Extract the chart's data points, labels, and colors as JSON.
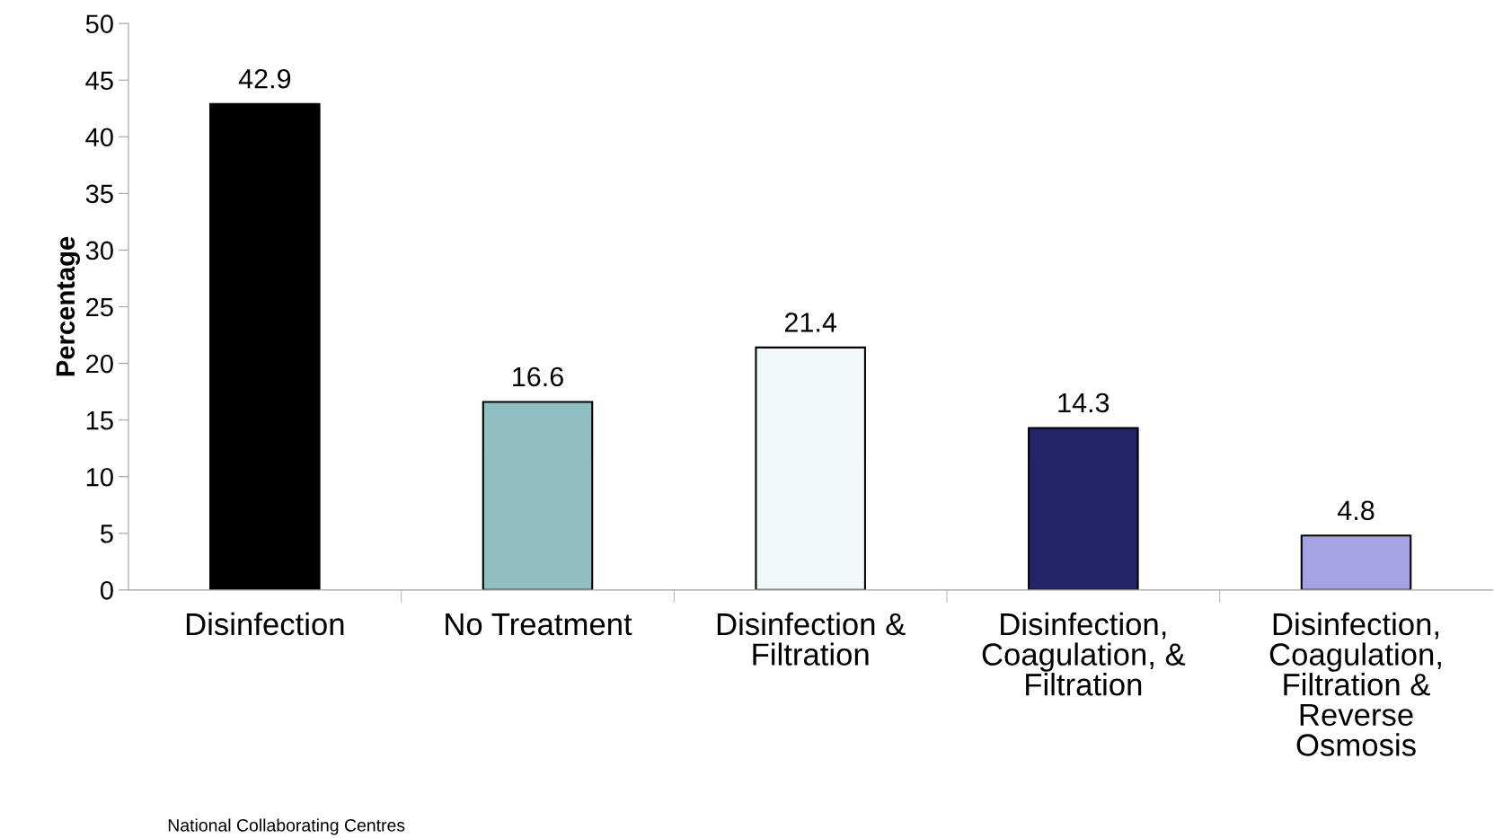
{
  "chart_data": {
    "type": "bar",
    "ylabel": "Percentage",
    "categories": [
      "Disinfection",
      "No Treatment",
      "Disinfection &\nFiltration",
      "Disinfection,\nCoagulation, &\nFiltration",
      "Disinfection,\nCoagulation,\nFiltration &\nReverse\nOsmosis"
    ],
    "values": [
      42.9,
      16.6,
      21.4,
      14.3,
      4.8
    ],
    "colors": [
      "#000000",
      "#8fbfc2",
      "#eff8f6",
      "#25246a",
      "#a4a2e0"
    ],
    "ylim": [
      0,
      50
    ],
    "yticks": [
      0,
      5,
      10,
      15,
      20,
      25,
      30,
      35,
      40,
      45,
      50
    ],
    "data_labels": true,
    "grid": false,
    "legend": false,
    "annotations": [
      "National Collaborating Centres"
    ]
  }
}
